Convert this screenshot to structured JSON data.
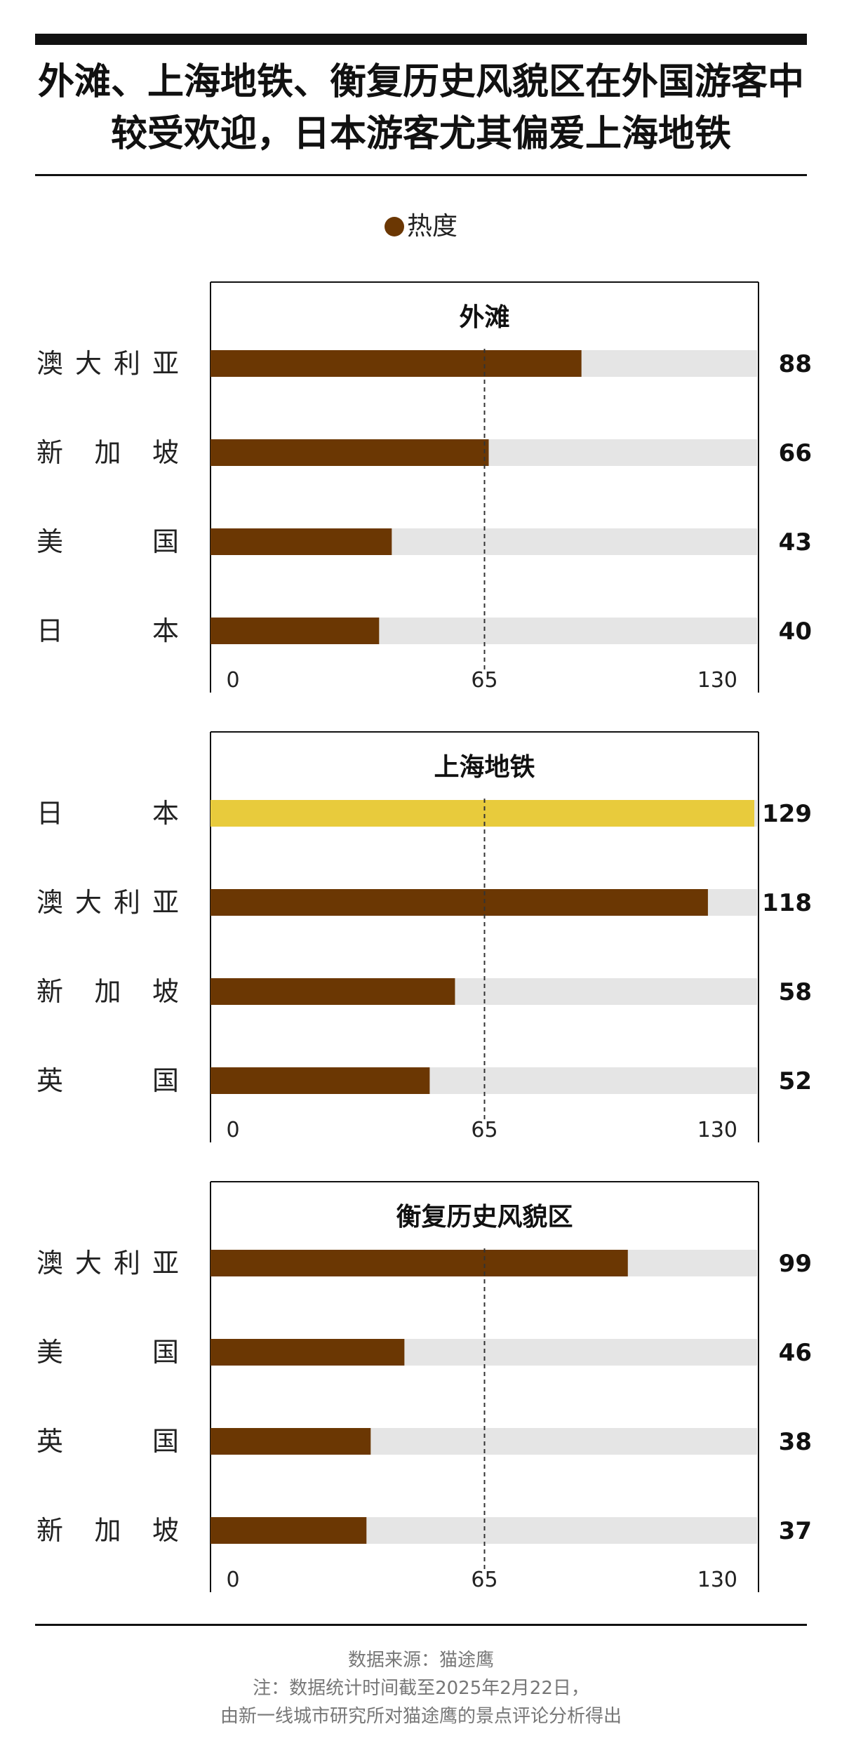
{
  "title": "外滩、上海地铁、衡复历史风貌区在外国游客中较受欢迎，日本游客尤其偏爱上海地铁",
  "legend": {
    "label": "热度"
  },
  "colors": {
    "bar": "#6b3703",
    "highlight": "#e8cb3c",
    "track": "#e5e5e5"
  },
  "chart_data": [
    {
      "type": "bar",
      "title": "外滩",
      "categories": [
        "澳大利亚",
        "新加坡",
        "美国",
        "日本"
      ],
      "values": [
        88,
        66,
        43,
        40
      ],
      "highlight": [],
      "xlim": [
        0,
        130
      ],
      "ticks": [
        "0",
        "65",
        "130"
      ],
      "reference_line": 65
    },
    {
      "type": "bar",
      "title": "上海地铁",
      "categories": [
        "日本",
        "澳大利亚",
        "新加坡",
        "英国"
      ],
      "values": [
        129,
        118,
        58,
        52
      ],
      "highlight": [
        0
      ],
      "xlim": [
        0,
        130
      ],
      "ticks": [
        "0",
        "65",
        "130"
      ],
      "reference_line": 65
    },
    {
      "type": "bar",
      "title": "衡复历史风貌区",
      "categories": [
        "澳大利亚",
        "美国",
        "英国",
        "新加坡"
      ],
      "values": [
        99,
        46,
        38,
        37
      ],
      "highlight": [],
      "xlim": [
        0,
        130
      ],
      "ticks": [
        "0",
        "65",
        "130"
      ],
      "reference_line": 65
    }
  ],
  "footer": {
    "source": "数据来源：猫途鹰",
    "note1": "注：数据统计时间截至2025年2月22日，",
    "note2": "由新一线城市研究所对猫途鹰的景点评论分析得出"
  }
}
